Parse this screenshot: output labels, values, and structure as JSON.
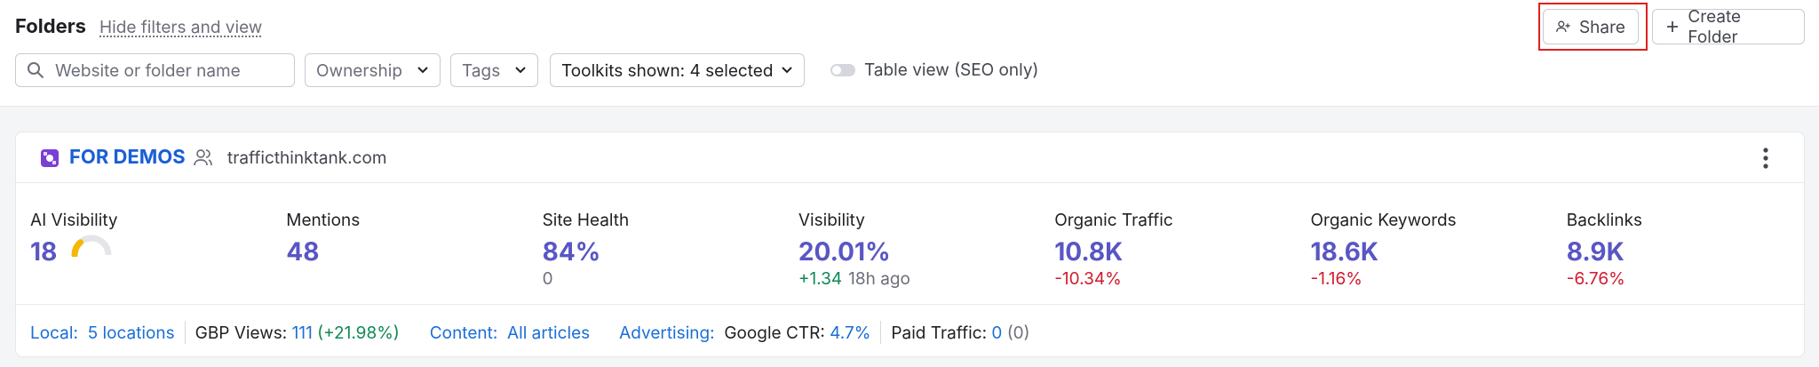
{
  "header": {
    "title": "Folders",
    "toggle_filters": "Hide filters and view",
    "share": "Share",
    "create_folder": "Create Folder"
  },
  "filters": {
    "search_placeholder": "Website or folder name",
    "ownership": "Ownership",
    "tags": "Tags",
    "toolkits": "Toolkits shown: 4 selected",
    "table_view": "Table view (SEO only)"
  },
  "folder": {
    "name": "FOR DEMOS",
    "domain": "trafficthinktank.com",
    "metrics": [
      {
        "label": "AI Visibility",
        "value": "18"
      },
      {
        "label": "Mentions",
        "value": "48"
      },
      {
        "label": "Site Health",
        "value": "84%",
        "sub": "0"
      },
      {
        "label": "Visibility",
        "value": "20.01%",
        "change": "+1.34",
        "time": "18h ago"
      },
      {
        "label": "Organic Traffic",
        "value": "10.8K",
        "change": "-10.34%"
      },
      {
        "label": "Organic Keywords",
        "value": "18.6K",
        "change": "-1.16%"
      },
      {
        "label": "Backlinks",
        "value": "8.9K",
        "change": "-6.76%"
      }
    ],
    "footer": {
      "local_label": "Local:",
      "local_value": "5 locations",
      "gbp_label": "GBP Views:",
      "gbp_value": "111",
      "gbp_change": "(+21.98%)",
      "content_label": "Content:",
      "content_value": "All articles",
      "ads_label": "Advertising:",
      "ctr_label": "Google CTR:",
      "ctr_value": "4.7%",
      "paid_label": "Paid Traffic:",
      "paid_value": "0",
      "paid_change": "(0)"
    }
  }
}
